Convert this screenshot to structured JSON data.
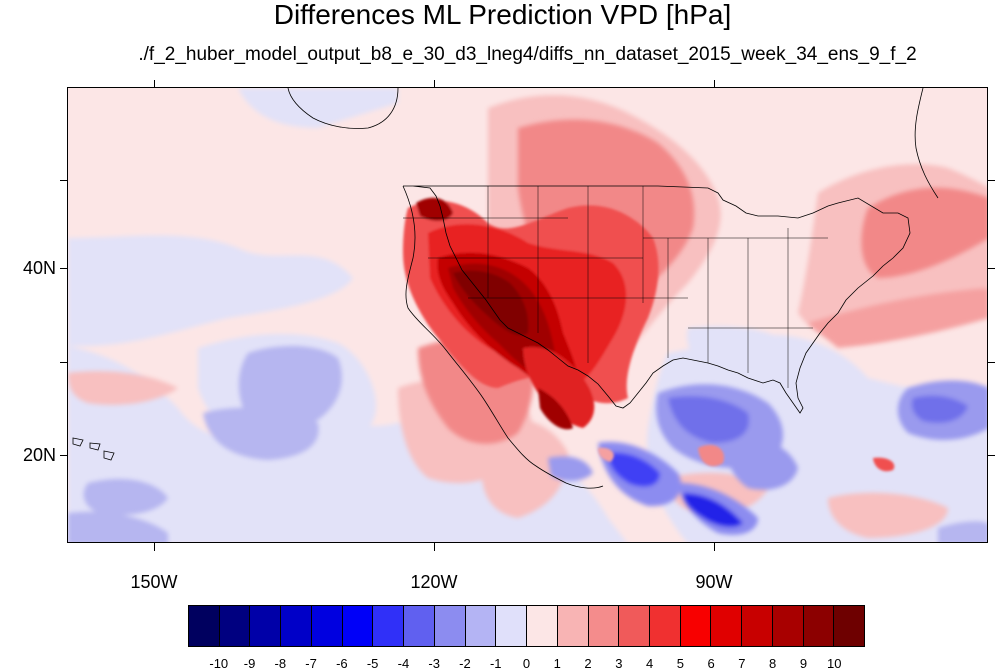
{
  "title": "Differences ML Prediction VPD [hPa]",
  "subtitle": "./f_2_huber_model_output_b8_e_30_d3_lneg4/diffs_nn_dataset_2015_week_34_ens_9_f_2",
  "lat_labels": [
    "40N",
    "20N"
  ],
  "lon_labels": [
    "150W",
    "120W",
    "90W"
  ],
  "colorbar": {
    "levels": [
      "-10",
      "-9",
      "-8",
      "-7",
      "-6",
      "-5",
      "-4",
      "-3",
      "-2",
      "-1",
      "0",
      "1",
      "2",
      "3",
      "4",
      "5",
      "6",
      "7",
      "8",
      "9",
      "10"
    ],
    "colors": [
      "#00005f",
      "#000080",
      "#0000a8",
      "#0000c8",
      "#0000e0",
      "#0000f8",
      "#3030f8",
      "#6060f0",
      "#8c8cf0",
      "#b4b4f4",
      "#e0e0fa",
      "#fce6e6",
      "#f8b4b4",
      "#f48c8c",
      "#f05a5a",
      "#f03030",
      "#f80000",
      "#e00000",
      "#c80000",
      "#a80000",
      "#8c0000",
      "#6e0000"
    ]
  },
  "colors": {
    "background": "#fce6e6",
    "frame": "#000000"
  }
}
